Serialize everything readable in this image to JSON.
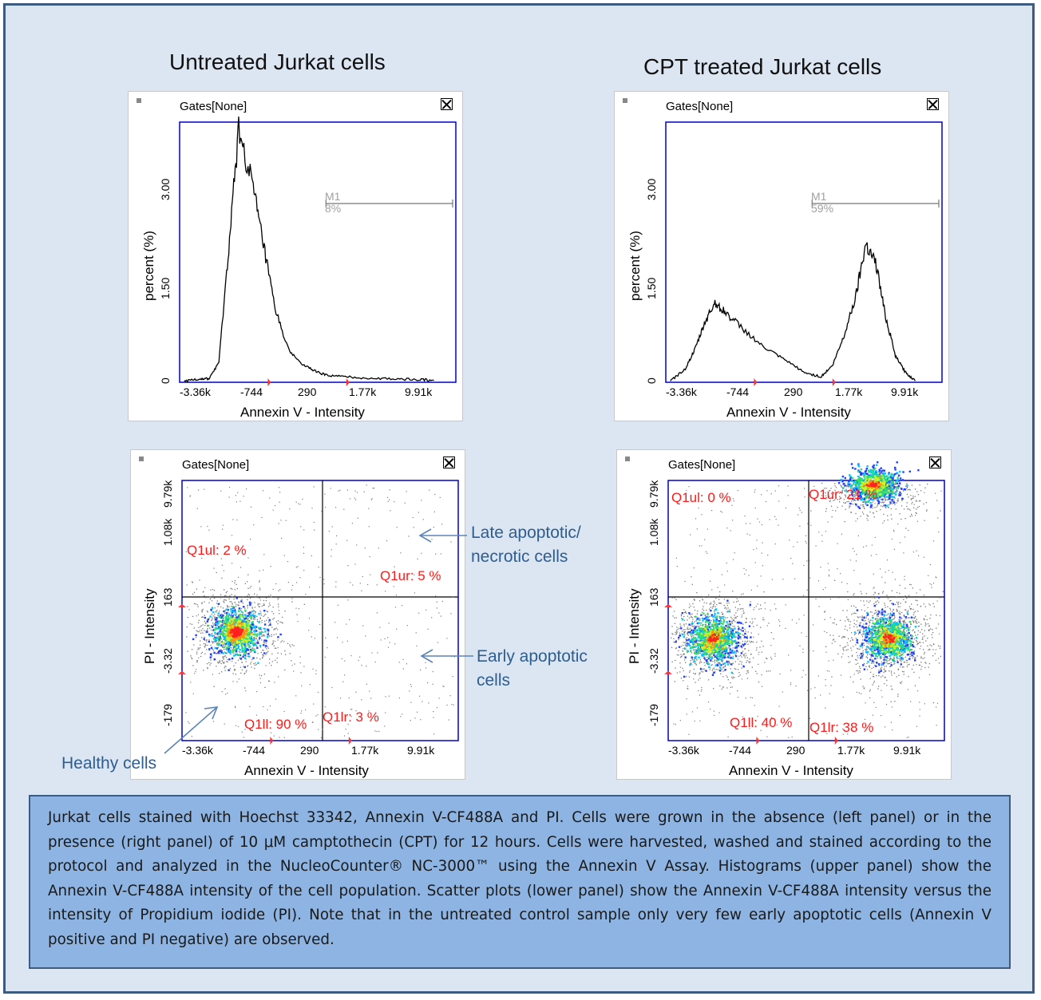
{
  "titles": {
    "left": "Untreated Jurkat cells",
    "right": "CPT treated Jurkat cells"
  },
  "common": {
    "gates_label": "Gates[None]",
    "histogram_ylabel": "percent (%)",
    "scatter_ylabel": "PI - Intensity",
    "xlabel": "Annexin V - Intensity",
    "x_ticks": [
      "-3.36k",
      "-744",
      "290",
      "1.77k",
      "9.91k"
    ],
    "hist_y_ticks": [
      "0",
      "1.50",
      "3.00"
    ],
    "scatter_y_ticks": [
      "-179",
      "-3.32",
      "163",
      "1.08k",
      "9.79k"
    ]
  },
  "annotations": {
    "late_apoptotic": [
      "Late apoptotic/",
      "necrotic cells"
    ],
    "early_apoptotic": [
      "Early apoptotic",
      "cells"
    ],
    "healthy": "Healthy cells"
  },
  "caption": "Jurkat cells stained with Hoechst 33342, Annexin V-CF488A and PI. Cells were grown in the absence (left panel) or in the presence (right panel) of 10 μM camptothecin (CPT) for 12 hours. Cells were harvested, washed and stained according to the protocol and analyzed in the NucleoCounter® NC-3000™ using the Annexin V Assay. Histograms (upper panel) show the Annexin V-CF488A intensity of the cell population. Scatter plots (lower panel) show the Annexin V-CF488A intensity versus the intensity of Propidium iodide (PI). Note that in the untreated control sample only very few early apoptotic cells (Annexin V positive and PI negative) are observed.",
  "colors": {
    "axis": "#0000cc",
    "quadrant_label": "#ff1a1a",
    "annotation": "#2e5d8f",
    "caption_bg": "#8db4e2",
    "background": "#dce6f2"
  },
  "chart_data": [
    {
      "type": "line",
      "panel": "untreated-histogram",
      "xlabel": "Annexin V - Intensity",
      "ylabel": "percent (%)",
      "x_scale": "index of tick labels (0 = -3.36k, 4 = 9.91k)",
      "x": [
        -0.1,
        0.2,
        0.4,
        0.6,
        0.8,
        1.0,
        1.2,
        1.35,
        1.5,
        1.7,
        1.9,
        2.1,
        2.3,
        2.6,
        3.0,
        3.5,
        4.0,
        4.3
      ],
      "y": [
        0.02,
        0.05,
        0.05,
        0.3,
        2.0,
        3.8,
        2.9,
        2.0,
        1.1,
        0.45,
        0.25,
        0.15,
        0.1,
        0.08,
        0.06,
        0.05,
        0.04,
        0.03
      ],
      "ylim": [
        0,
        3.8
      ],
      "marker": {
        "name": "M1",
        "percent": "8%",
        "x_start": 2.25,
        "x_end": 4.4
      }
    },
    {
      "type": "line",
      "panel": "cpt-histogram",
      "xlabel": "Annexin V - Intensity",
      "ylabel": "percent (%)",
      "x": [
        -0.1,
        0.2,
        0.4,
        0.6,
        0.8,
        1.0,
        1.2,
        1.5,
        1.8,
        2.1,
        2.4,
        2.6,
        2.8,
        3.0,
        3.2,
        3.4,
        3.6,
        3.8,
        4.0,
        4.2
      ],
      "y": [
        0.02,
        0.2,
        0.5,
        0.9,
        1.2,
        1.05,
        0.85,
        0.55,
        0.35,
        0.15,
        0.08,
        0.25,
        0.7,
        1.3,
        2.1,
        1.8,
        1.0,
        0.4,
        0.15,
        0.02
      ],
      "ylim": [
        0,
        3.8
      ],
      "marker": {
        "name": "M1",
        "percent": "59%",
        "x_start": 2.25,
        "x_end": 4.4
      }
    },
    {
      "type": "scatter",
      "panel": "untreated-scatter",
      "xlabel": "Annexin V - Intensity",
      "ylabel": "PI - Intensity",
      "quadrants": {
        "Q1ul": "Q1ul: 2 %",
        "Q1ur": "Q1ur: 5 %",
        "Q1ll": "Q1ll: 90 %",
        "Q1lr": "Q1lr: 3 %"
      },
      "clusters": [
        {
          "label": "healthy",
          "x": 0.9,
          "y": 1.5,
          "density": "high"
        }
      ]
    },
    {
      "type": "scatter",
      "panel": "cpt-scatter",
      "xlabel": "Annexin V - Intensity",
      "ylabel": "PI - Intensity",
      "quadrants": {
        "Q1ul": "Q1ul: 0 %",
        "Q1ur": "Q1ur: 21 %",
        "Q1ll": "Q1ll: 40 %",
        "Q1lr": "Q1lr: 38 %"
      },
      "clusters": [
        {
          "label": "healthy",
          "x": 0.7,
          "y": 1.4,
          "density": "high"
        },
        {
          "label": "early apoptotic",
          "x": 3.6,
          "y": 1.4,
          "density": "high"
        },
        {
          "label": "late apoptotic",
          "x": 3.3,
          "y": 4.1,
          "density": "high"
        }
      ]
    }
  ]
}
